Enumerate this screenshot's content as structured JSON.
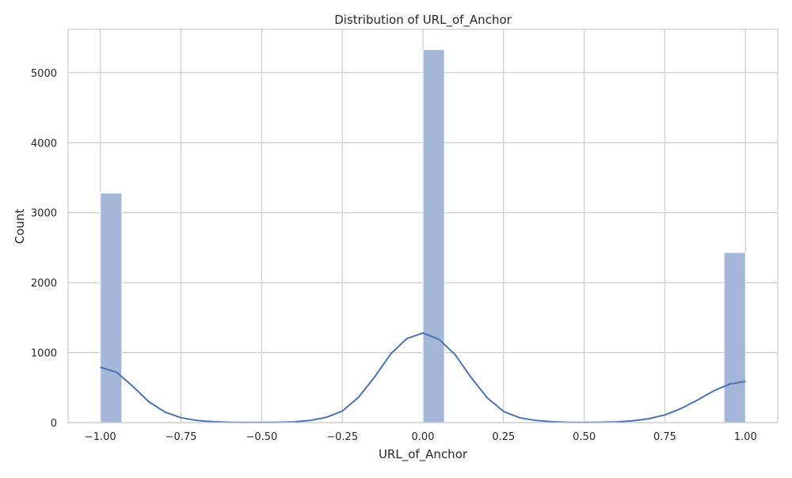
{
  "chart_data": {
    "type": "bar",
    "title": "Distribution of URL_of_Anchor",
    "xlabel": "URL_of_Anchor",
    "ylabel": "Count",
    "xlim": [
      -1.1,
      1.1
    ],
    "ylim": [
      0,
      5620
    ],
    "xticks": [
      -1.0,
      -0.75,
      -0.5,
      -0.25,
      0.0,
      0.25,
      0.5,
      0.75,
      1.0
    ],
    "xtick_labels": [
      "−1.00",
      "−0.75",
      "−0.50",
      "−0.25",
      "0.00",
      "0.25",
      "0.50",
      "0.75",
      "1.00"
    ],
    "yticks": [
      0,
      1000,
      2000,
      3000,
      4000,
      5000
    ],
    "ytick_labels": [
      "0",
      "1000",
      "2000",
      "3000",
      "4000",
      "5000"
    ],
    "grid": true,
    "bars": [
      {
        "x_start": -1.0,
        "x_end": -0.9333,
        "count": 3280
      },
      {
        "x_start": 0.0,
        "x_end": 0.0667,
        "count": 5330
      },
      {
        "x_start": 0.9333,
        "x_end": 1.0,
        "count": 2430
      }
    ],
    "kde": {
      "x": [
        -1.0,
        -0.95,
        -0.9,
        -0.85,
        -0.8,
        -0.75,
        -0.7,
        -0.65,
        -0.6,
        -0.55,
        -0.5,
        -0.45,
        -0.4,
        -0.35,
        -0.3,
        -0.25,
        -0.2,
        -0.15,
        -0.1,
        -0.05,
        0.0,
        0.05,
        0.1,
        0.15,
        0.2,
        0.25,
        0.3,
        0.35,
        0.4,
        0.45,
        0.5,
        0.55,
        0.6,
        0.65,
        0.7,
        0.75,
        0.8,
        0.85,
        0.9,
        0.95,
        1.0
      ],
      "y": [
        790,
        720,
        520,
        300,
        150,
        70,
        30,
        12,
        5,
        3,
        3,
        4,
        10,
        30,
        75,
        165,
        360,
        650,
        980,
        1200,
        1280,
        1190,
        970,
        640,
        350,
        160,
        70,
        30,
        12,
        5,
        3,
        4,
        10,
        25,
        55,
        110,
        200,
        320,
        450,
        550,
        590
      ]
    },
    "colors": {
      "bar_fill": "#a4b7d9",
      "bar_edge": "#ffffff",
      "kde_line": "#4c72b0",
      "grid": "#cccccc",
      "frame": "#cccccc"
    }
  }
}
